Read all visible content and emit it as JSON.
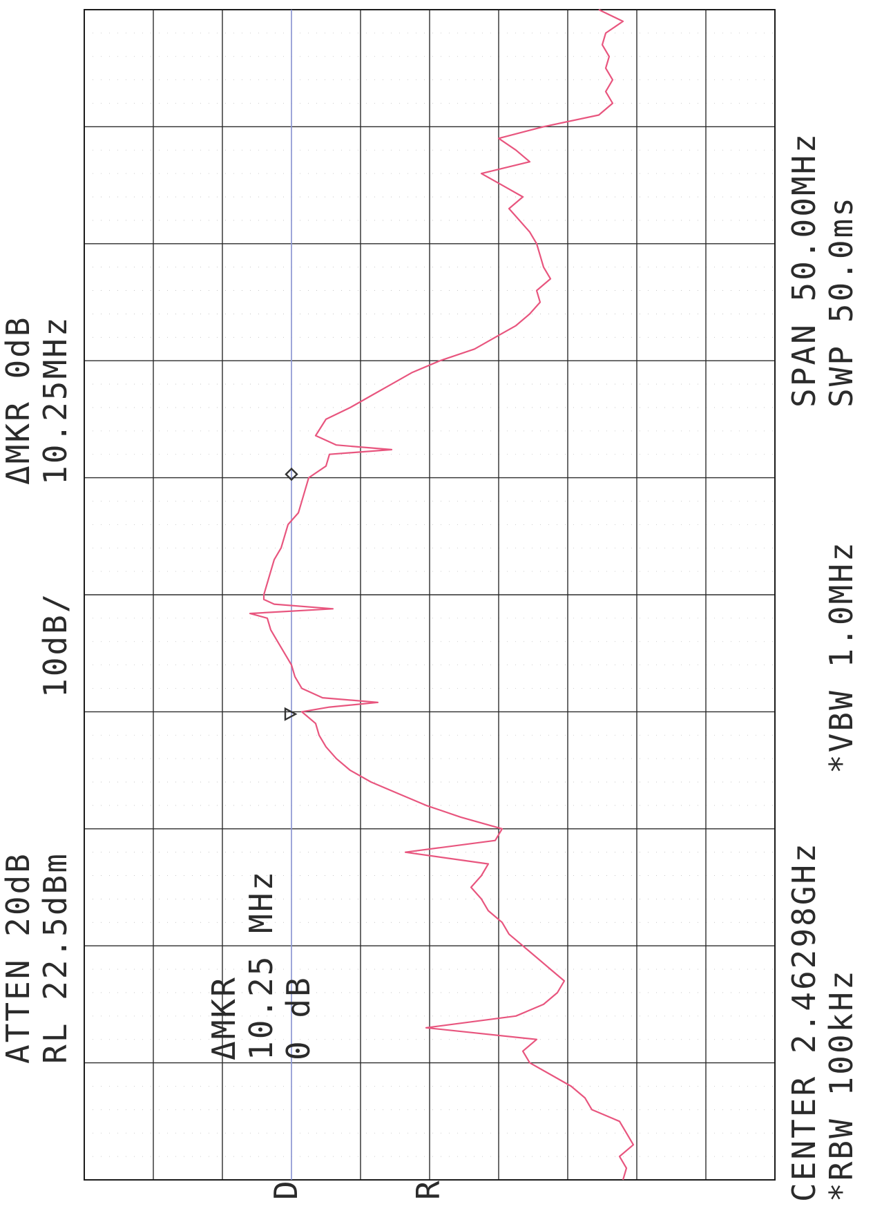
{
  "header": {
    "atten": "ATTEN 20dB",
    "ref_level": "RL 22.5dBm",
    "scale": "10dB/",
    "marker_header": "ΔMKR 0dB",
    "marker_header_freq": "10.25MHz"
  },
  "footer": {
    "center": "CENTER 2.46298GHz",
    "span": "SPAN 50.00MHz",
    "rbw": "*RBW 100kHz",
    "vbw": "*VBW 1.0MHz",
    "swp": "SWP 50.0ms"
  },
  "annotation": {
    "line1": "ΔMKR",
    "line2": "10.25 MHz",
    "line3": "0 dB"
  },
  "side_marks": {
    "d": "D",
    "r": "R"
  },
  "colors": {
    "trace": "#e8557e",
    "display_line": "#9aa6ee",
    "grid": "#2a2a2a",
    "marker": "#333333"
  },
  "chart_data": {
    "type": "line",
    "x_unit": "MHz offset from center",
    "y_unit": "dBm",
    "xlim": [
      -25,
      25
    ],
    "ylim": [
      -77.5,
      22.5
    ],
    "reference_level": 22.5,
    "scale_per_div": 10,
    "display_line_dbm": -7.5,
    "markers": [
      {
        "symbol": "triangle",
        "x": -5.1,
        "y": -7.5
      },
      {
        "symbol": "diamond",
        "x": 5.15,
        "y": -7.5
      }
    ],
    "series": [
      {
        "x": [
          -25,
          -24.5,
          -24,
          -23.5,
          -23,
          -22.5,
          -22,
          -21.5,
          -21,
          -20.5,
          -20,
          -19.5,
          -19,
          -18.5,
          -18,
          -17.5,
          -17,
          -16.5,
          -16,
          -15.5,
          -15,
          -14.5,
          -14,
          -13.5,
          -13,
          -12.5,
          -12,
          -11.5,
          -11,
          -10.5,
          -10,
          -9.5,
          -9,
          -8.5,
          -8,
          -7.5,
          -7,
          -6.5,
          -6,
          -5.5,
          -5,
          -4.8,
          -4.6,
          -4.4,
          -4,
          -3.5,
          -3,
          -2.5,
          -2,
          -1.5,
          -1,
          -0.8,
          -0.6,
          -0.4,
          -0.2,
          0,
          0.5,
          1,
          1.5,
          2,
          2.5,
          3,
          3.5,
          4,
          4.5,
          5,
          5.5,
          6,
          6.2,
          6.4,
          6.8,
          7.5,
          8,
          8.5,
          9,
          9.5,
          10,
          10.5,
          11,
          11.5,
          12,
          12.5,
          13,
          13.5,
          14,
          14.5,
          15,
          15.5,
          16,
          16.5,
          17,
          17.5,
          18,
          18.5,
          19,
          19.5,
          20,
          20.5,
          21,
          21.5,
          22,
          22.5,
          23,
          23.5,
          24,
          24.5,
          25
        ],
        "y": [
          -55.5,
          -56,
          -55,
          -57,
          -56,
          -55,
          -51,
          -50,
          -48,
          -45,
          -42,
          -41,
          -43,
          -27,
          -40,
          -44,
          -46,
          -47,
          -45,
          -43,
          -41,
          -39,
          -38,
          -36,
          -35,
          -33.5,
          -35,
          -36,
          -24,
          -37,
          -38,
          -32,
          -27,
          -23,
          -19,
          -16,
          -14,
          -12.5,
          -11.5,
          -11,
          -9,
          -13,
          -20,
          -12,
          -9,
          -8,
          -7.5,
          -6.5,
          -5.5,
          -4.5,
          -4,
          -1.5,
          -13.5,
          -5,
          -3.5,
          -3.5,
          -4,
          -4.5,
          -5,
          -6,
          -6.5,
          -7,
          -8.5,
          -9,
          -9.5,
          -10,
          -12.5,
          -13,
          -22,
          -14,
          -11,
          -12.5,
          -16,
          -19,
          -22,
          -25,
          -29,
          -34,
          -37,
          -40,
          -42,
          -43.5,
          -43,
          -45,
          -44,
          -43.5,
          -43,
          -42,
          -40.5,
          -39,
          -41,
          -38,
          -35,
          -42,
          -40,
          -37.5,
          -44,
          -52,
          -54,
          -53,
          -54,
          -53,
          -53.5,
          -52.5,
          -53,
          -55.5,
          -52
        ]
      }
    ]
  }
}
